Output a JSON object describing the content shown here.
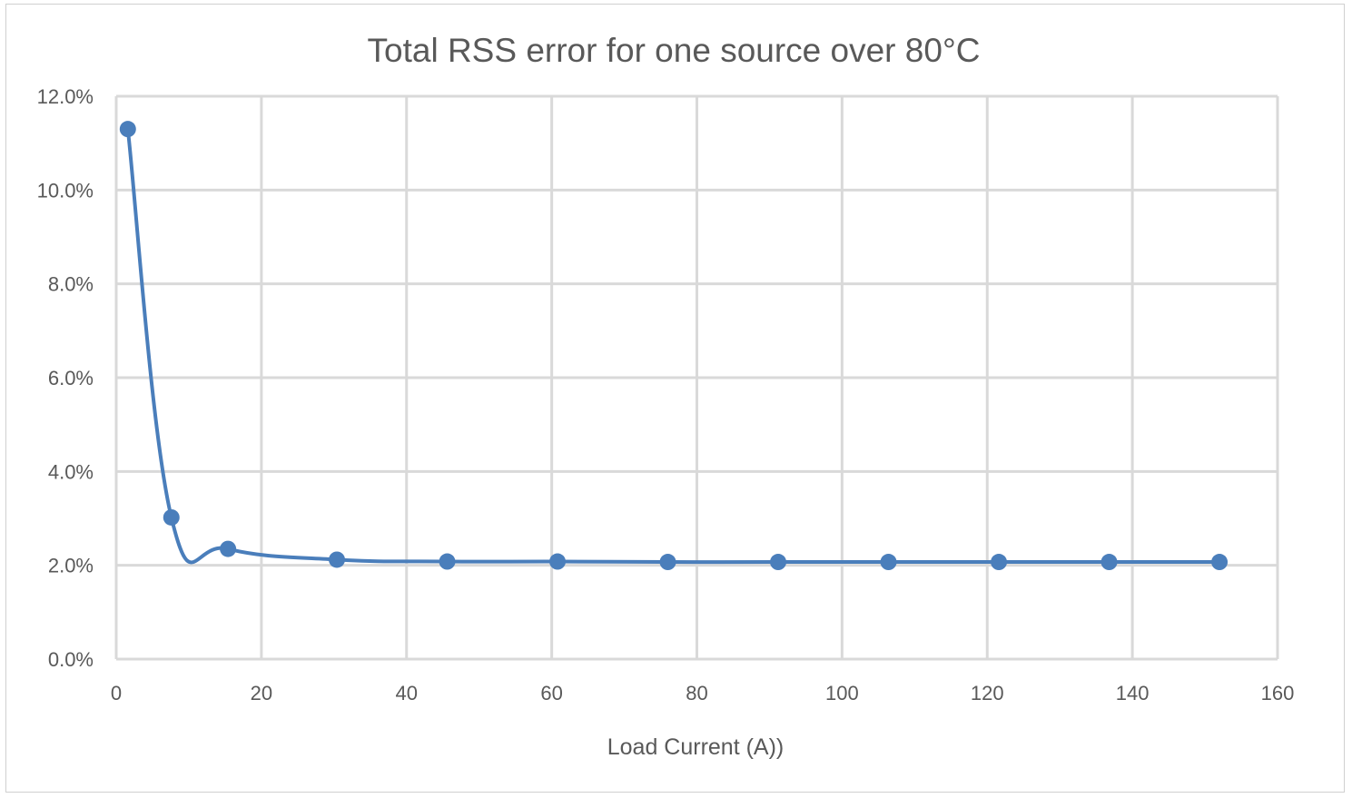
{
  "chart_data": {
    "type": "scatter",
    "title": "Total RSS error for one source over 80°C",
    "xlabel": "Load Current (A))",
    "ylabel": "",
    "xlim": [
      0,
      160
    ],
    "ylim": [
      0,
      0.12
    ],
    "x_ticks": [
      "0",
      "20",
      "40",
      "60",
      "80",
      "100",
      "120",
      "140",
      "160"
    ],
    "x_tick_values": [
      0,
      20,
      40,
      60,
      80,
      100,
      120,
      140,
      160
    ],
    "y_ticks": [
      "0.0%",
      "2.0%",
      "4.0%",
      "6.0%",
      "8.0%",
      "10.0%",
      "12.0%"
    ],
    "y_tick_values": [
      0,
      0.02,
      0.04,
      0.06,
      0.08,
      0.1,
      0.12
    ],
    "grid": true,
    "legend": false,
    "smooth_line": true,
    "series_color": "#4a7ebb",
    "series": [
      {
        "x": [
          1.6,
          7.6,
          15.4,
          30.4,
          45.6,
          60.8,
          76.0,
          91.2,
          106.4,
          121.6,
          136.8,
          152.0
        ],
        "y": [
          0.113,
          0.0302,
          0.0235,
          0.0212,
          0.0208,
          0.0208,
          0.0207,
          0.0207,
          0.0207,
          0.0207,
          0.0207,
          0.0207
        ]
      }
    ]
  }
}
